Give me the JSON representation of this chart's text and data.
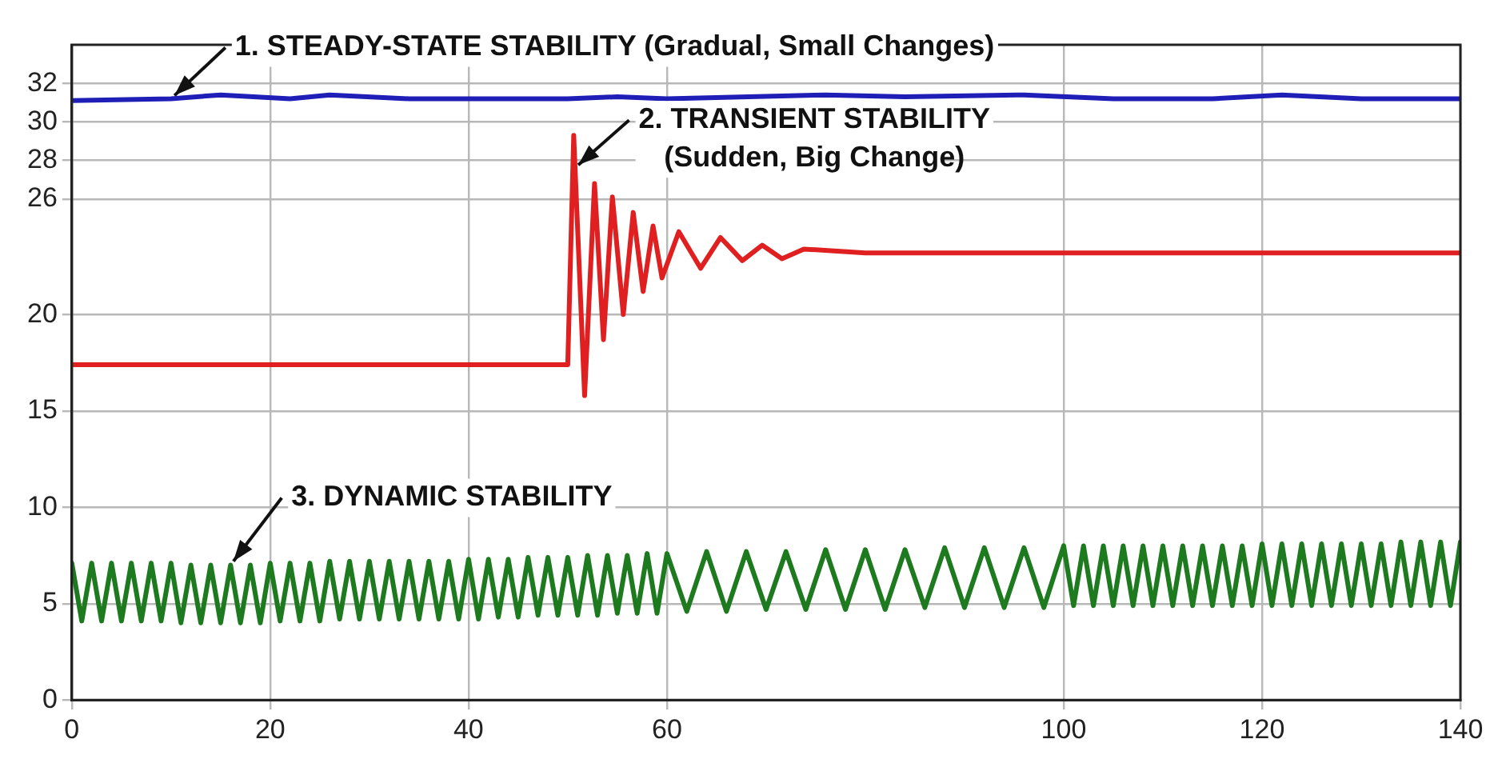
{
  "chart_data": {
    "type": "line",
    "xlim": [
      0,
      140
    ],
    "ylim": [
      0,
      34
    ],
    "xticks": [
      0,
      20,
      40,
      60,
      100,
      120,
      140
    ],
    "yticks": [
      0,
      5,
      10,
      15,
      20,
      26,
      28,
      30,
      32
    ],
    "grid": true,
    "legend": false,
    "marker": "none",
    "line_style": "solid",
    "annotations": [
      {
        "text": "1. STEADY-STATE STABILITY (Gradual, Small Changes)",
        "x": 10,
        "y": 31.2
      },
      {
        "text": "2. TRANSIENT STABILITY\n(Sudden, Big Change)",
        "x": 50.7,
        "y": 27.6
      },
      {
        "text": "3. DYNAMIC STABILITY",
        "x": 16,
        "y": 7.0
      }
    ],
    "series": [
      {
        "color": "#1f1fb8",
        "x": [
          0,
          10,
          15,
          22,
          26,
          34,
          40,
          47,
          50,
          55,
          60,
          76,
          84,
          96,
          105,
          115,
          122,
          130,
          140
        ],
        "values": [
          31.1,
          31.2,
          31.4,
          31.2,
          31.4,
          31.2,
          31.2,
          31.2,
          31.2,
          31.3,
          31.2,
          31.4,
          31.3,
          31.4,
          31.2,
          31.2,
          31.4,
          31.2,
          31.2
        ]
      },
      {
        "color": "#e02020",
        "x": [
          0,
          50.0,
          50.6,
          51.7,
          52.7,
          53.6,
          54.5,
          55.6,
          56.6,
          57.6,
          58.6,
          59.5,
          61.2,
          63.4,
          65.4,
          67.6,
          69.6,
          71.6,
          73.8,
          80,
          140
        ],
        "values": [
          17.4,
          17.4,
          29.3,
          15.8,
          26.8,
          18.7,
          26.1,
          20.0,
          25.3,
          21.2,
          24.6,
          21.9,
          24.3,
          22.4,
          24.0,
          22.8,
          23.6,
          22.9,
          23.4,
          23.2,
          23.2
        ]
      },
      {
        "color": "#1e7a1e",
        "x": [
          0,
          1,
          2,
          3,
          4,
          5,
          6,
          7,
          8,
          9,
          10,
          11,
          12,
          13,
          14,
          15,
          16,
          17,
          18,
          19,
          20,
          21,
          22,
          23,
          24,
          25,
          26,
          27,
          28,
          29,
          30,
          31,
          32,
          33,
          34,
          35,
          36,
          37,
          38,
          39,
          40,
          41,
          42,
          43,
          44,
          45,
          46,
          47,
          48,
          49,
          50,
          51,
          52,
          53,
          54,
          55,
          56,
          57,
          58,
          59,
          60,
          62,
          64,
          66,
          68,
          70,
          72,
          74,
          76,
          78,
          80,
          82,
          84,
          86,
          88,
          90,
          92,
          94,
          96,
          98,
          100,
          101,
          102,
          103,
          104,
          105,
          106,
          107,
          108,
          109,
          110,
          111,
          112,
          113,
          114,
          115,
          116,
          117,
          118,
          119,
          120,
          121,
          122,
          123,
          124,
          125,
          126,
          127,
          128,
          129,
          130,
          131,
          132,
          133,
          134,
          135,
          136,
          137,
          138,
          139,
          140
        ],
        "values": [
          7.1,
          4.1,
          7.1,
          4.1,
          7.1,
          4.1,
          7.1,
          4.1,
          7.1,
          4.1,
          7.1,
          4.0,
          7.0,
          4.0,
          7.0,
          4.0,
          7.0,
          4.0,
          7.0,
          4.0,
          7.1,
          4.1,
          7.1,
          4.1,
          7.1,
          4.1,
          7.2,
          4.2,
          7.2,
          4.2,
          7.2,
          4.2,
          7.2,
          4.2,
          7.2,
          4.2,
          7.2,
          4.2,
          7.2,
          4.2,
          7.3,
          4.2,
          7.3,
          4.3,
          7.3,
          4.3,
          7.4,
          4.4,
          7.4,
          4.4,
          7.4,
          4.4,
          7.5,
          4.4,
          7.5,
          4.5,
          7.5,
          4.5,
          7.6,
          4.5,
          7.6,
          4.6,
          7.7,
          4.6,
          7.7,
          4.7,
          7.7,
          4.7,
          7.8,
          4.7,
          7.8,
          4.7,
          7.8,
          4.8,
          7.9,
          4.8,
          7.9,
          4.8,
          7.9,
          4.8,
          8.0,
          4.9,
          8.0,
          4.9,
          8.0,
          4.9,
          8.0,
          4.9,
          8.0,
          4.9,
          8.0,
          4.9,
          8.0,
          4.9,
          8.0,
          4.9,
          8.0,
          4.9,
          8.0,
          4.9,
          8.1,
          4.9,
          8.1,
          4.9,
          8.1,
          4.9,
          8.1,
          4.9,
          8.1,
          4.9,
          8.1,
          4.9,
          8.1,
          4.9,
          8.2,
          4.9,
          8.2,
          4.9,
          8.2,
          4.9,
          8.2
        ]
      }
    ]
  }
}
